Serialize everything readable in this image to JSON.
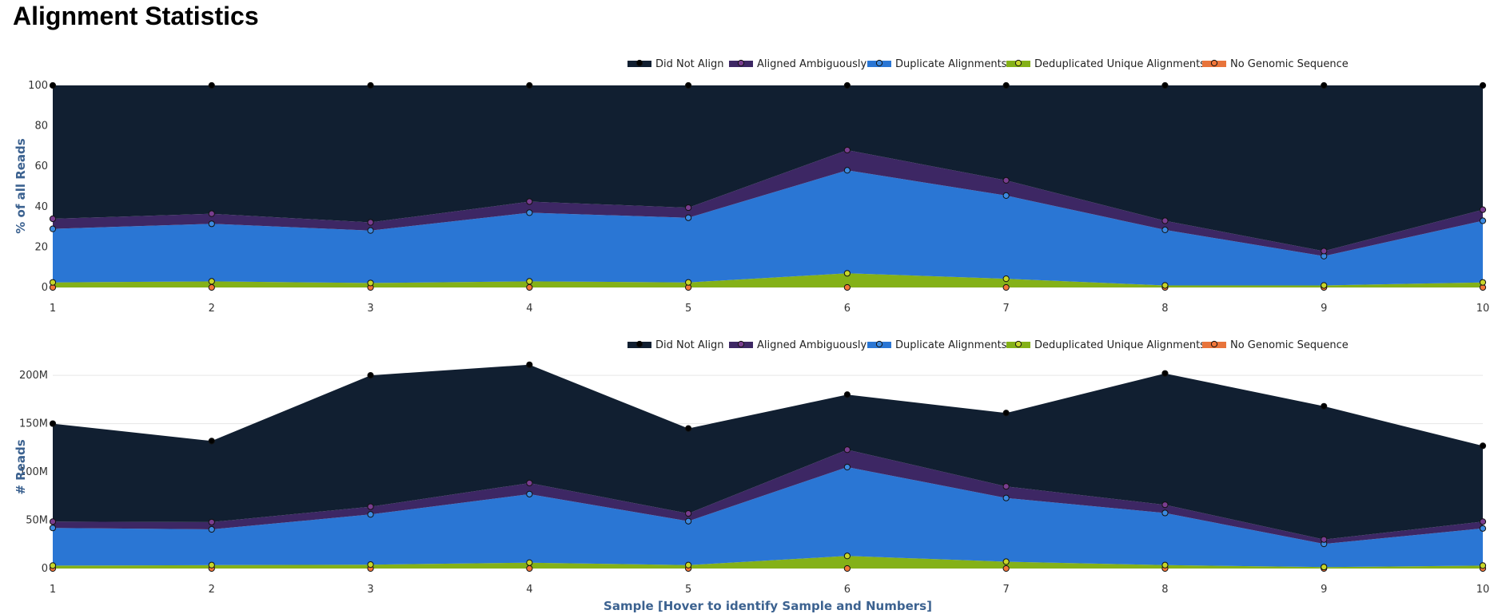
{
  "page_title": "Alignment Statistics",
  "colors": {
    "did_not_align": "#111f31",
    "aligned_ambiguously": "#3d2764",
    "duplicate_alignments": "#2a76d4",
    "deduplicated_unique": "#84b118",
    "no_genomic_sequence": "#e8743b",
    "axis_title": "#3c6290"
  },
  "chart_data": [
    {
      "type": "area",
      "stacked": true,
      "x": [
        1,
        2,
        3,
        4,
        5,
        6,
        7,
        8,
        9,
        10
      ],
      "ylabel": "% of all Reads",
      "ylim": [
        0,
        100
      ],
      "yticks": [
        "0",
        "20",
        "40",
        "60",
        "80",
        "100"
      ],
      "ytick_values": [
        0,
        20,
        40,
        60,
        80,
        100
      ],
      "grid": true,
      "legend_position": "top",
      "series": [
        {
          "name": "No Genomic Sequence",
          "values": [
            0,
            0,
            0,
            0,
            0,
            0,
            0,
            0,
            0,
            0
          ]
        },
        {
          "name": "Deduplicated Unique Alignments",
          "values": [
            2.5,
            3,
            2.2,
            3,
            2.5,
            7,
            4.3,
            1,
            1,
            2.5
          ]
        },
        {
          "name": "Duplicate Alignments",
          "values": [
            26.5,
            28.5,
            26,
            34,
            32,
            51,
            41.2,
            27.5,
            14.5,
            30.5
          ]
        },
        {
          "name": "Aligned Ambiguously",
          "values": [
            5,
            5,
            4,
            5.5,
            5,
            10,
            7.5,
            4.5,
            2.5,
            5.5
          ]
        },
        {
          "name": "Did Not Align",
          "values": [
            66,
            63.5,
            67.8,
            57.5,
            60.5,
            32,
            47,
            67,
            82,
            61.5
          ]
        }
      ]
    },
    {
      "type": "area",
      "stacked": true,
      "x": [
        1,
        2,
        3,
        4,
        5,
        6,
        7,
        8,
        9,
        10
      ],
      "xlabel": "Sample [Hover to identify Sample and Numbers]",
      "ylabel": "# Reads",
      "ylim": [
        0,
        210000000
      ],
      "yticks": [
        "0",
        "50M",
        "100M",
        "150M",
        "200M"
      ],
      "ytick_values": [
        0,
        50000000,
        100000000,
        150000000,
        200000000
      ],
      "grid": true,
      "legend_position": "top",
      "series": [
        {
          "name": "No Genomic Sequence",
          "values": [
            0,
            0,
            0,
            0,
            0,
            0,
            0,
            0,
            0,
            0
          ]
        },
        {
          "name": "Deduplicated Unique Alignments",
          "values": [
            3000000,
            3500000,
            4000000,
            6000000,
            3500000,
            13000000,
            7000000,
            3500000,
            1500000,
            3000000
          ]
        },
        {
          "name": "Duplicate Alignments",
          "values": [
            39000000,
            37000000,
            52000000,
            71000000,
            45500000,
            92000000,
            66000000,
            54000000,
            24000000,
            38500000
          ]
        },
        {
          "name": "Aligned Ambiguously",
          "values": [
            6500000,
            7500000,
            8000000,
            11500000,
            8000000,
            18000000,
            12000000,
            8500000,
            4500000,
            7000000
          ]
        },
        {
          "name": "Did Not Align",
          "values": [
            101500000,
            84000000,
            136000000,
            122500000,
            88000000,
            57000000,
            76000000,
            136000000,
            138000000,
            78500000
          ]
        }
      ]
    }
  ]
}
